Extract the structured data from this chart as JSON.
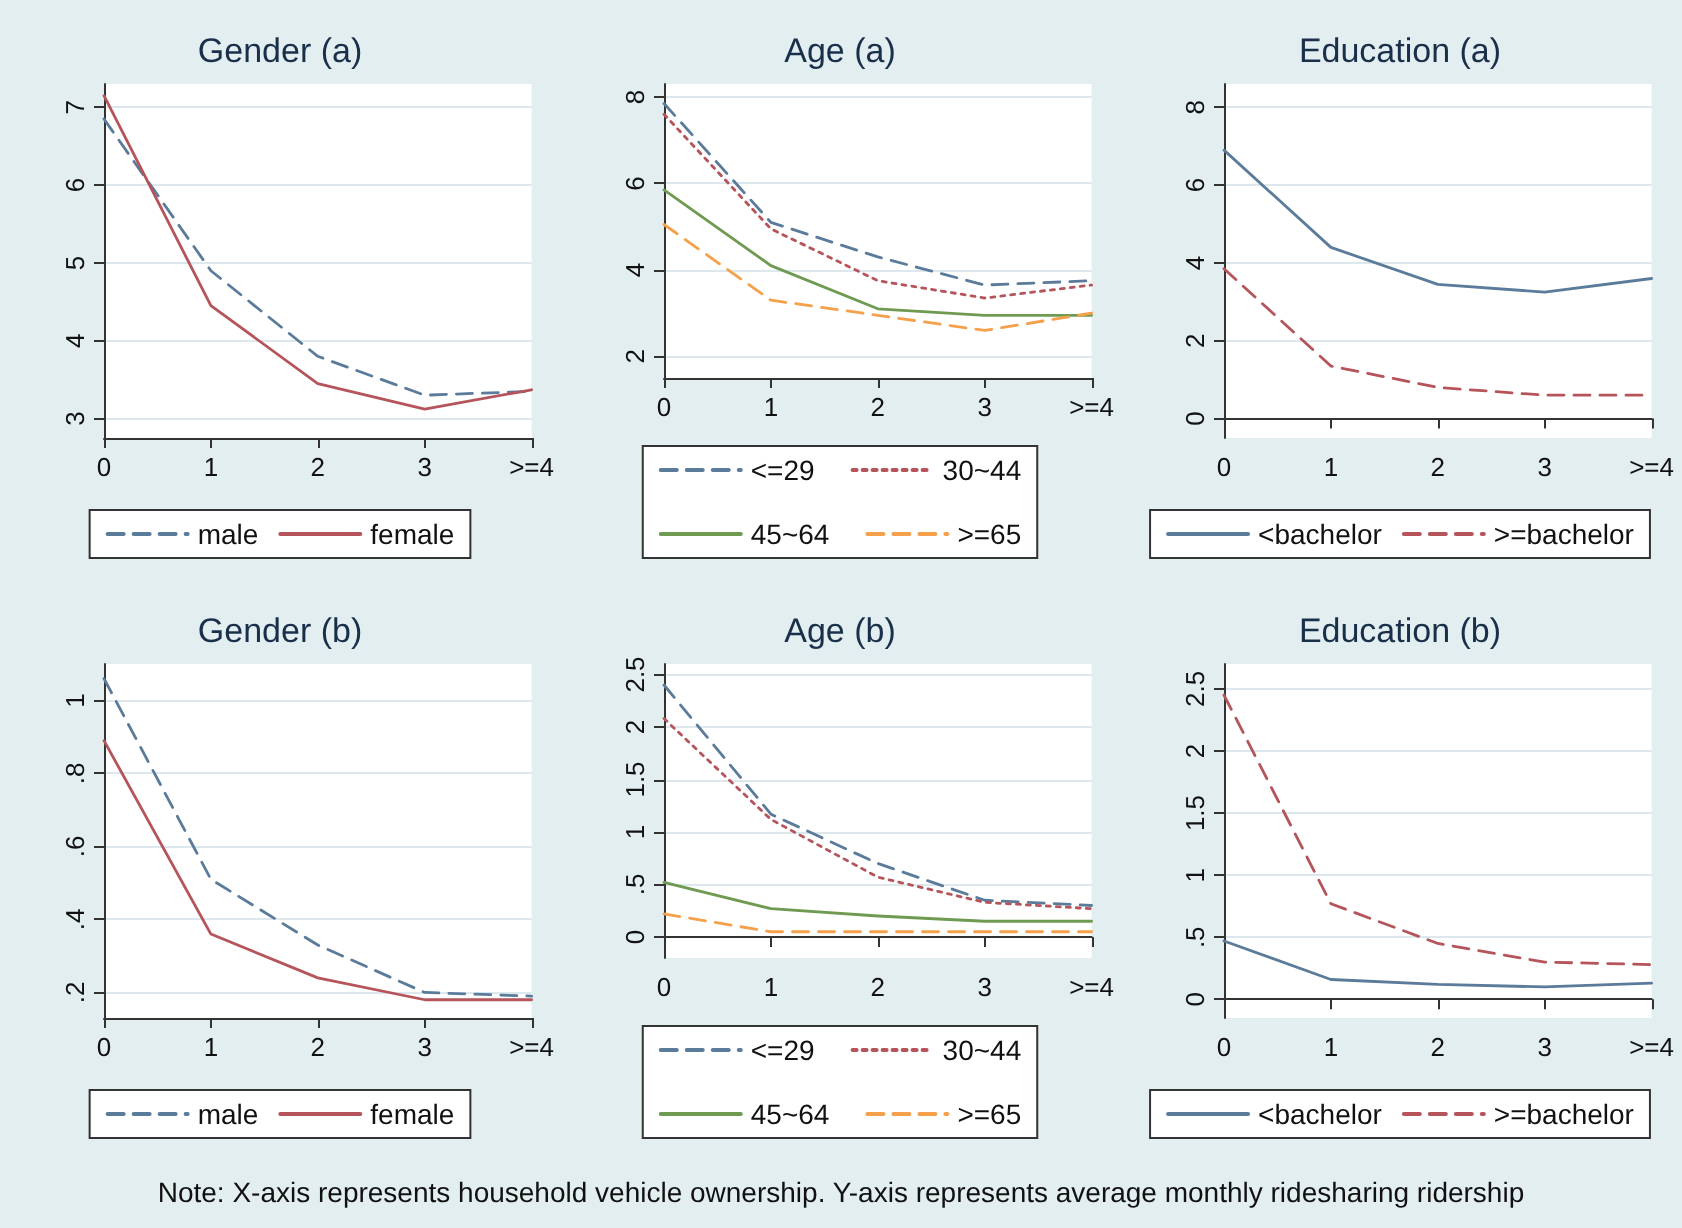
{
  "chart_data": [
    {
      "type": "line",
      "title": "Gender (a)",
      "categories": [
        "0",
        "1",
        "2",
        "3",
        ">=4"
      ],
      "ylim": [
        2.75,
        7.3
      ],
      "yticks": [
        3,
        4,
        5,
        6,
        7
      ],
      "grid": "y",
      "legend": "bottom",
      "marker": "none",
      "series": [
        {
          "name": "male",
          "color": "#5b7b9b",
          "line_style": "dashed",
          "values": [
            6.85,
            4.9,
            3.8,
            3.3,
            3.35
          ]
        },
        {
          "name": "female",
          "color": "#b5545a",
          "line_style": "solid",
          "values": [
            7.15,
            4.45,
            3.45,
            3.12,
            3.37
          ]
        }
      ]
    },
    {
      "type": "line",
      "title": "Age (a)",
      "categories": [
        "0",
        "1",
        "2",
        "3",
        ">=4"
      ],
      "ylim": [
        1.5,
        8.3
      ],
      "yticks": [
        2,
        4,
        6,
        8
      ],
      "grid": "y",
      "legend": "bottom",
      "marker": "none",
      "series": [
        {
          "name": "<=29",
          "color": "#5b7b9b",
          "line_style": "dashed",
          "values": [
            7.85,
            5.1,
            4.3,
            3.65,
            3.75
          ]
        },
        {
          "name": "30~44",
          "color": "#b5545a",
          "line_style": "dotted",
          "values": [
            7.6,
            4.95,
            3.75,
            3.35,
            3.65
          ]
        },
        {
          "name": "45~64",
          "color": "#6f9a52",
          "line_style": "solid",
          "values": [
            5.85,
            4.1,
            3.1,
            2.95,
            2.95
          ]
        },
        {
          "name": ">=65",
          "color": "#f5a04a",
          "line_style": "dashed",
          "values": [
            5.05,
            3.3,
            2.95,
            2.6,
            3.0
          ]
        }
      ]
    },
    {
      "type": "line",
      "title": "Education (a)",
      "categories": [
        "0",
        "1",
        "2",
        "3",
        ">=4"
      ],
      "ylim": [
        -0.5,
        8.6
      ],
      "yticks": [
        0,
        2,
        4,
        6,
        8
      ],
      "grid": "y",
      "legend": "bottom",
      "marker": "none",
      "series": [
        {
          "name": "<bachelor",
          "color": "#5b7b9b",
          "line_style": "solid",
          "values": [
            6.9,
            4.4,
            3.45,
            3.25,
            3.6
          ]
        },
        {
          "name": ">=bachelor",
          "color": "#b5545a",
          "line_style": "dashed",
          "values": [
            3.85,
            1.35,
            0.8,
            0.6,
            0.6
          ]
        }
      ]
    },
    {
      "type": "line",
      "title": "Gender (b)",
      "categories": [
        "0",
        "1",
        "2",
        "3",
        ">=4"
      ],
      "ylim": [
        0.13,
        1.1
      ],
      "yticks": [
        {
          "value": 0.2,
          "label": ".2"
        },
        {
          "value": 0.4,
          "label": ".4"
        },
        {
          "value": 0.6,
          "label": ".6"
        },
        {
          "value": 0.8,
          "label": ".8"
        },
        1
      ],
      "grid": "y",
      "legend": "bottom",
      "marker": "none",
      "series": [
        {
          "name": "male",
          "color": "#5b7b9b",
          "line_style": "dashed",
          "values": [
            1.06,
            0.51,
            0.33,
            0.2,
            0.19
          ]
        },
        {
          "name": "female",
          "color": "#b5545a",
          "line_style": "solid",
          "values": [
            0.89,
            0.36,
            0.24,
            0.18,
            0.18
          ]
        }
      ]
    },
    {
      "type": "line",
      "title": "Age (b)",
      "categories": [
        "0",
        "1",
        "2",
        "3",
        ">=4"
      ],
      "ylim": [
        -0.2,
        2.6
      ],
      "yticks": [
        0,
        {
          "value": 0.5,
          "label": ".5"
        },
        1,
        1.5,
        2,
        2.5
      ],
      "grid": "y",
      "legend": "bottom",
      "marker": "none",
      "series": [
        {
          "name": "<=29",
          "color": "#5b7b9b",
          "line_style": "dashed",
          "values": [
            2.4,
            1.17,
            0.7,
            0.35,
            0.3
          ]
        },
        {
          "name": "30~44",
          "color": "#b5545a",
          "line_style": "dotted",
          "values": [
            2.08,
            1.12,
            0.57,
            0.33,
            0.27
          ]
        },
        {
          "name": "45~64",
          "color": "#6f9a52",
          "line_style": "solid",
          "values": [
            0.52,
            0.27,
            0.2,
            0.15,
            0.15
          ]
        },
        {
          "name": ">=65",
          "color": "#f5a04a",
          "line_style": "dashed",
          "values": [
            0.22,
            0.05,
            0.05,
            0.05,
            0.05
          ]
        }
      ]
    },
    {
      "type": "line",
      "title": "Education (b)",
      "categories": [
        "0",
        "1",
        "2",
        "3",
        ">=4"
      ],
      "ylim": [
        -0.15,
        2.7
      ],
      "yticks": [
        0,
        {
          "value": 0.5,
          "label": ".5"
        },
        1,
        1.5,
        2,
        2.5
      ],
      "grid": "y",
      "legend": "bottom",
      "marker": "none",
      "annotations": [
        "Note: X-axis represents household vehicle ownership. Y-axis represents average monthly ridesharing ridership"
      ],
      "series": [
        {
          "name": "<bachelor",
          "color": "#5b7b9b",
          "line_style": "solid",
          "values": [
            0.47,
            0.16,
            0.12,
            0.1,
            0.13
          ]
        },
        {
          "name": ">=bachelor",
          "color": "#b5545a",
          "line_style": "dashed",
          "values": [
            2.45,
            0.77,
            0.45,
            0.3,
            0.28
          ]
        }
      ]
    }
  ]
}
